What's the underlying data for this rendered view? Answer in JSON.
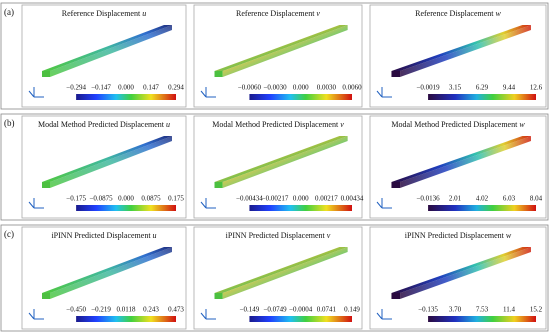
{
  "rows": [
    {
      "label": "(a)",
      "panels": [
        {
          "title": "Reference Displacement",
          "variable": "u",
          "ticks": [
            "−0.294",
            "−0.147",
            "0.000",
            "0.147",
            "0.294"
          ]
        },
        {
          "title": "Reference Displacement",
          "variable": "v",
          "ticks": [
            "−0.0060",
            "−0.0030",
            "0.000",
            "0.0030",
            "0.0060"
          ]
        },
        {
          "title": "Reference Displacement",
          "variable": "w",
          "ticks": [
            "−0.0019",
            "3.15",
            "6.29",
            "9.44",
            "12.6"
          ]
        }
      ]
    },
    {
      "label": "(b)",
      "panels": [
        {
          "title": "Modal Method Predicted Displacement",
          "variable": "u",
          "ticks": [
            "−0.175",
            "−0.0875",
            "0.000",
            "0.0875",
            "0.175"
          ]
        },
        {
          "title": "Modal Method Predicted Displacement",
          "variable": "v",
          "ticks": [
            "−0.00434",
            "−0.00217",
            "0.000",
            "0.00217",
            "0.00434"
          ]
        },
        {
          "title": "Modal Method Predicted Displacement",
          "variable": "w",
          "ticks": [
            "−0.0136",
            "2.01",
            "4.02",
            "6.03",
            "8.04"
          ]
        }
      ]
    },
    {
      "label": "(c)",
      "panels": [
        {
          "title": "iPINN Predicted Displacement",
          "variable": "u",
          "ticks": [
            "−0.450",
            "−0.219",
            "0.0118",
            "0.243",
            "0.473"
          ]
        },
        {
          "title": "iPINN Predicted Displacement",
          "variable": "v",
          "ticks": [
            "−0.149",
            "−0.0749",
            "−0.0004",
            "0.0741",
            "0.149"
          ]
        },
        {
          "title": "iPINN Predicted Displacement",
          "variable": "w",
          "ticks": [
            "−0.135",
            "3.70",
            "7.53",
            "11.4",
            "15.2"
          ]
        }
      ]
    }
  ]
}
